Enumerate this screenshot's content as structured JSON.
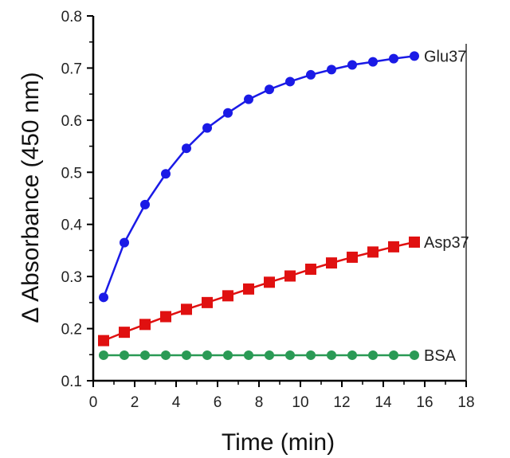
{
  "chart_data": {
    "type": "line",
    "xlabel": "Time (min)",
    "ylabel": "Δ Absorbance (450 nm)",
    "xlim": [
      0,
      18
    ],
    "ylim": [
      0.1,
      0.8
    ],
    "xticks": [
      0,
      2,
      4,
      6,
      8,
      10,
      12,
      14,
      16,
      18
    ],
    "yticks": [
      0.1,
      0.2,
      0.3,
      0.4,
      0.5,
      0.6,
      0.7,
      0.8
    ],
    "grid": false,
    "legend": "none",
    "series": [
      {
        "name": "Glu37",
        "color": "#1a1ae6",
        "marker": "circle",
        "x": [
          0.5,
          1.5,
          2.5,
          3.5,
          4.5,
          5.5,
          6.5,
          7.5,
          8.5,
          9.5,
          10.5,
          11.5,
          12.5,
          13.5,
          14.5,
          15.5
        ],
        "y": [
          0.26,
          0.365,
          0.438,
          0.497,
          0.546,
          0.585,
          0.614,
          0.64,
          0.659,
          0.674,
          0.687,
          0.697,
          0.706,
          0.712,
          0.718,
          0.723
        ]
      },
      {
        "name": "Asp37",
        "color": "#e01010",
        "marker": "square",
        "x": [
          0.5,
          1.5,
          2.5,
          3.5,
          4.5,
          5.5,
          6.5,
          7.5,
          8.5,
          9.5,
          10.5,
          11.5,
          12.5,
          13.5,
          14.5,
          15.5
        ],
        "y": [
          0.177,
          0.193,
          0.208,
          0.223,
          0.237,
          0.25,
          0.263,
          0.276,
          0.289,
          0.301,
          0.314,
          0.326,
          0.337,
          0.347,
          0.357,
          0.366
        ]
      },
      {
        "name": "BSA",
        "color": "#2a9a55",
        "marker": "circle",
        "x": [
          0.5,
          1.5,
          2.5,
          3.5,
          4.5,
          5.5,
          6.5,
          7.5,
          8.5,
          9.5,
          10.5,
          11.5,
          12.5,
          13.5,
          14.5,
          15.5
        ],
        "y": [
          0.149,
          0.149,
          0.149,
          0.149,
          0.149,
          0.149,
          0.149,
          0.149,
          0.149,
          0.149,
          0.149,
          0.149,
          0.149,
          0.149,
          0.149,
          0.149
        ]
      }
    ]
  }
}
